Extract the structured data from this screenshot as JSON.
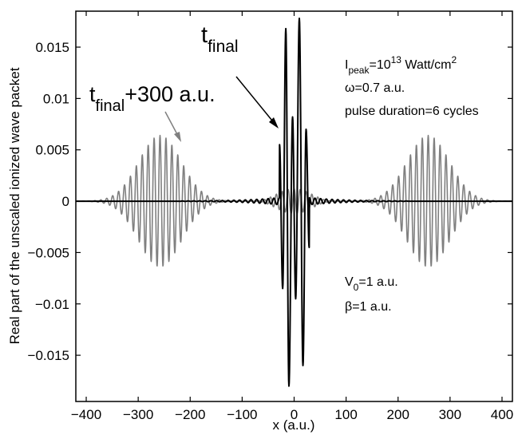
{
  "chart_data": {
    "type": "line",
    "xlabel": "x (a.u.)",
    "ylabel": "Real part of the unscaled ionized wave packet",
    "xlim": [
      -420,
      420
    ],
    "ylim": [
      -0.0195,
      0.0185
    ],
    "grid": false,
    "x_ticks": [
      -400,
      -300,
      -200,
      -100,
      0,
      100,
      200,
      300,
      400
    ],
    "y_ticks": [
      -0.015,
      -0.01,
      -0.005,
      0,
      0.005,
      0.01,
      0.015
    ],
    "x_tick_labels": [
      "−400",
      "−300",
      "−200",
      "−100",
      "0",
      "100",
      "200",
      "300",
      "400"
    ],
    "y_tick_labels": [
      "−0.015",
      "−0.01",
      "−0.005",
      "0",
      "0.005",
      "0.01",
      "0.015"
    ],
    "series": [
      {
        "label_main": "t",
        "label_sub": "final",
        "label_tail": "",
        "color": "#000000",
        "model": "central",
        "extrema_x": [
          -28,
          -22,
          -16,
          -10,
          -3,
          3,
          10,
          17,
          23,
          29
        ],
        "extrema_y": [
          0.0055,
          -0.0085,
          0.0168,
          -0.018,
          0.0082,
          -0.0095,
          0.0178,
          -0.016,
          0.007,
          -0.0045
        ],
        "tail_amplitude": 0.00035,
        "tail_extent": [
          -220,
          220
        ],
        "tail_wavelength": 11
      },
      {
        "label_main": "t",
        "label_sub": "final",
        "label_tail": "+300 a.u.",
        "color": "#808080",
        "model": "twin_packets",
        "centers": [
          -258,
          258
        ],
        "amplitude": 0.0064,
        "envelope_width": 58,
        "wavelength": 11.4,
        "inner_ripple_amplitude": 0.0012,
        "inner_ripple_extent": [
          -75,
          75
        ]
      }
    ],
    "annotations": {
      "ipeak_prefix": "I",
      "ipeak_sub": "peak",
      "ipeak_eq": "=10",
      "ipeak_exp": "13",
      "ipeak_unit": " Watt/cm",
      "ipeak_unit_exp": "2",
      "omega": "ω=0.7 a.u.",
      "pulse": "pulse duration=6 cycles",
      "v0_prefix": "V",
      "v0_sub": "0",
      "v0_suffix": "=1 a.u.",
      "beta": "β=1 a.u."
    }
  }
}
